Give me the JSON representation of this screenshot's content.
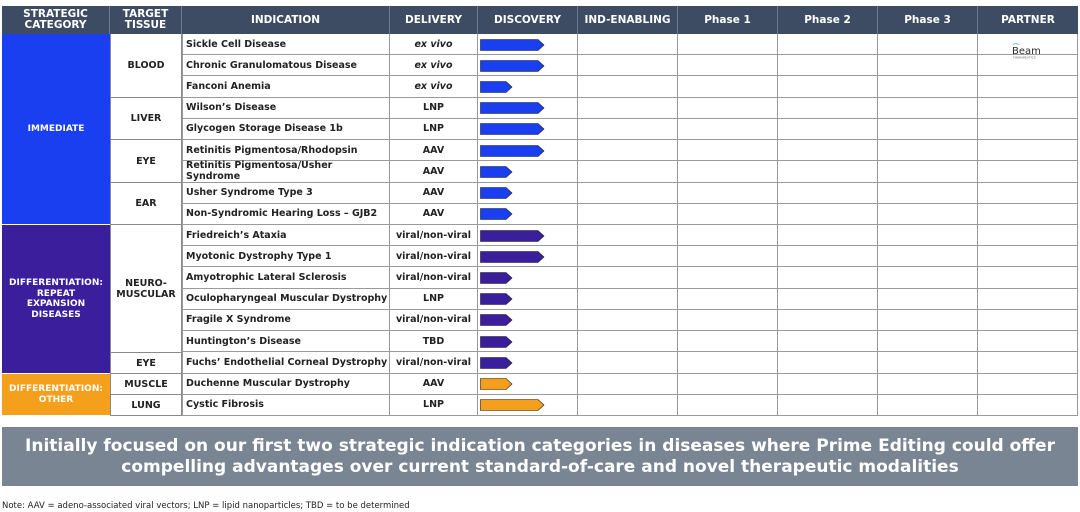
{
  "headers": {
    "strategic_category": "STRATEGIC CATEGORY",
    "target_tissue": "TARGET TISSUE",
    "indication": "INDICATION",
    "delivery": "DELIVERY",
    "discovery": "DISCOVERY",
    "ind_enabling": "IND-ENABLING",
    "phase1": "Phase 1",
    "phase2": "Phase 2",
    "phase3": "Phase 3",
    "partner": "PARTNER"
  },
  "categories": [
    {
      "label": "IMMEDIATE",
      "color": "#1a3ff0"
    },
    {
      "label": "DIFFERENTIATION: REPEAT EXPANSION DISEASES",
      "color": "#3a1e9c"
    },
    {
      "label": "DIFFERENTIATION: OTHER",
      "color": "#f5a01c"
    }
  ],
  "tissues": [
    "BLOOD",
    "LIVER",
    "EYE",
    "EAR",
    "NEURO-MUSCULAR",
    "EYE",
    "MUSCLE",
    "LUNG"
  ],
  "rows": [
    {
      "indication": "Sickle Cell Disease",
      "delivery": "ex vivo",
      "progress": 1.0
    },
    {
      "indication": "Chronic Granulomatous Disease",
      "delivery": "ex vivo",
      "progress": 1.0
    },
    {
      "indication": "Fanconi Anemia",
      "delivery": "ex vivo",
      "progress": 0.5
    },
    {
      "indication": "Wilson’s Disease",
      "delivery": "LNP",
      "progress": 1.0
    },
    {
      "indication": "Glycogen Storage Disease 1b",
      "delivery": "LNP",
      "progress": 1.0
    },
    {
      "indication": "Retinitis Pigmentosa/Rhodopsin",
      "delivery": "AAV",
      "progress": 1.0
    },
    {
      "indication": "Retinitis Pigmentosa/Usher Syndrome",
      "delivery": "AAV",
      "progress": 0.5
    },
    {
      "indication": "Usher Syndrome Type 3",
      "delivery": "AAV",
      "progress": 0.5
    },
    {
      "indication": "Non-Syndromic Hearing Loss – GJB2",
      "delivery": "AAV",
      "progress": 0.5
    },
    {
      "indication": "Friedreich’s Ataxia",
      "delivery": "viral/non-viral",
      "progress": 1.0
    },
    {
      "indication": "Myotonic Dystrophy Type 1",
      "delivery": "viral/non-viral",
      "progress": 1.0
    },
    {
      "indication": "Amyotrophic Lateral Sclerosis",
      "delivery": "viral/non-viral",
      "progress": 0.5
    },
    {
      "indication": "Oculopharyngeal Muscular Dystrophy",
      "delivery": "LNP",
      "progress": 0.5
    },
    {
      "indication": "Fragile X Syndrome",
      "delivery": "viral/non-viral",
      "progress": 0.5
    },
    {
      "indication": "Huntington’s Disease",
      "delivery": "TBD",
      "progress": 0.5
    },
    {
      "indication": "Fuchs’ Endothelial Corneal Dystrophy",
      "delivery": "viral/non-viral",
      "progress": 0.5
    },
    {
      "indication": "Duchenne Muscular Dystrophy",
      "delivery": "AAV",
      "progress": 0.5
    },
    {
      "indication": "Cystic Fibrosis",
      "delivery": "LNP",
      "progress": 1.0
    }
  ],
  "partner": {
    "name": "Beam",
    "sub": "THERAPEUTICS"
  },
  "banner": {
    "line1": "Initially focused on our first two strategic indication categories in diseases where Prime Editing could offer",
    "line2": "compelling advantages over current standard-of-care and novel therapeutic modalities"
  },
  "note": "Note: AAV = adeno-associated viral vectors; LNP = lipid nanoparticles; TBD = to be determined"
}
